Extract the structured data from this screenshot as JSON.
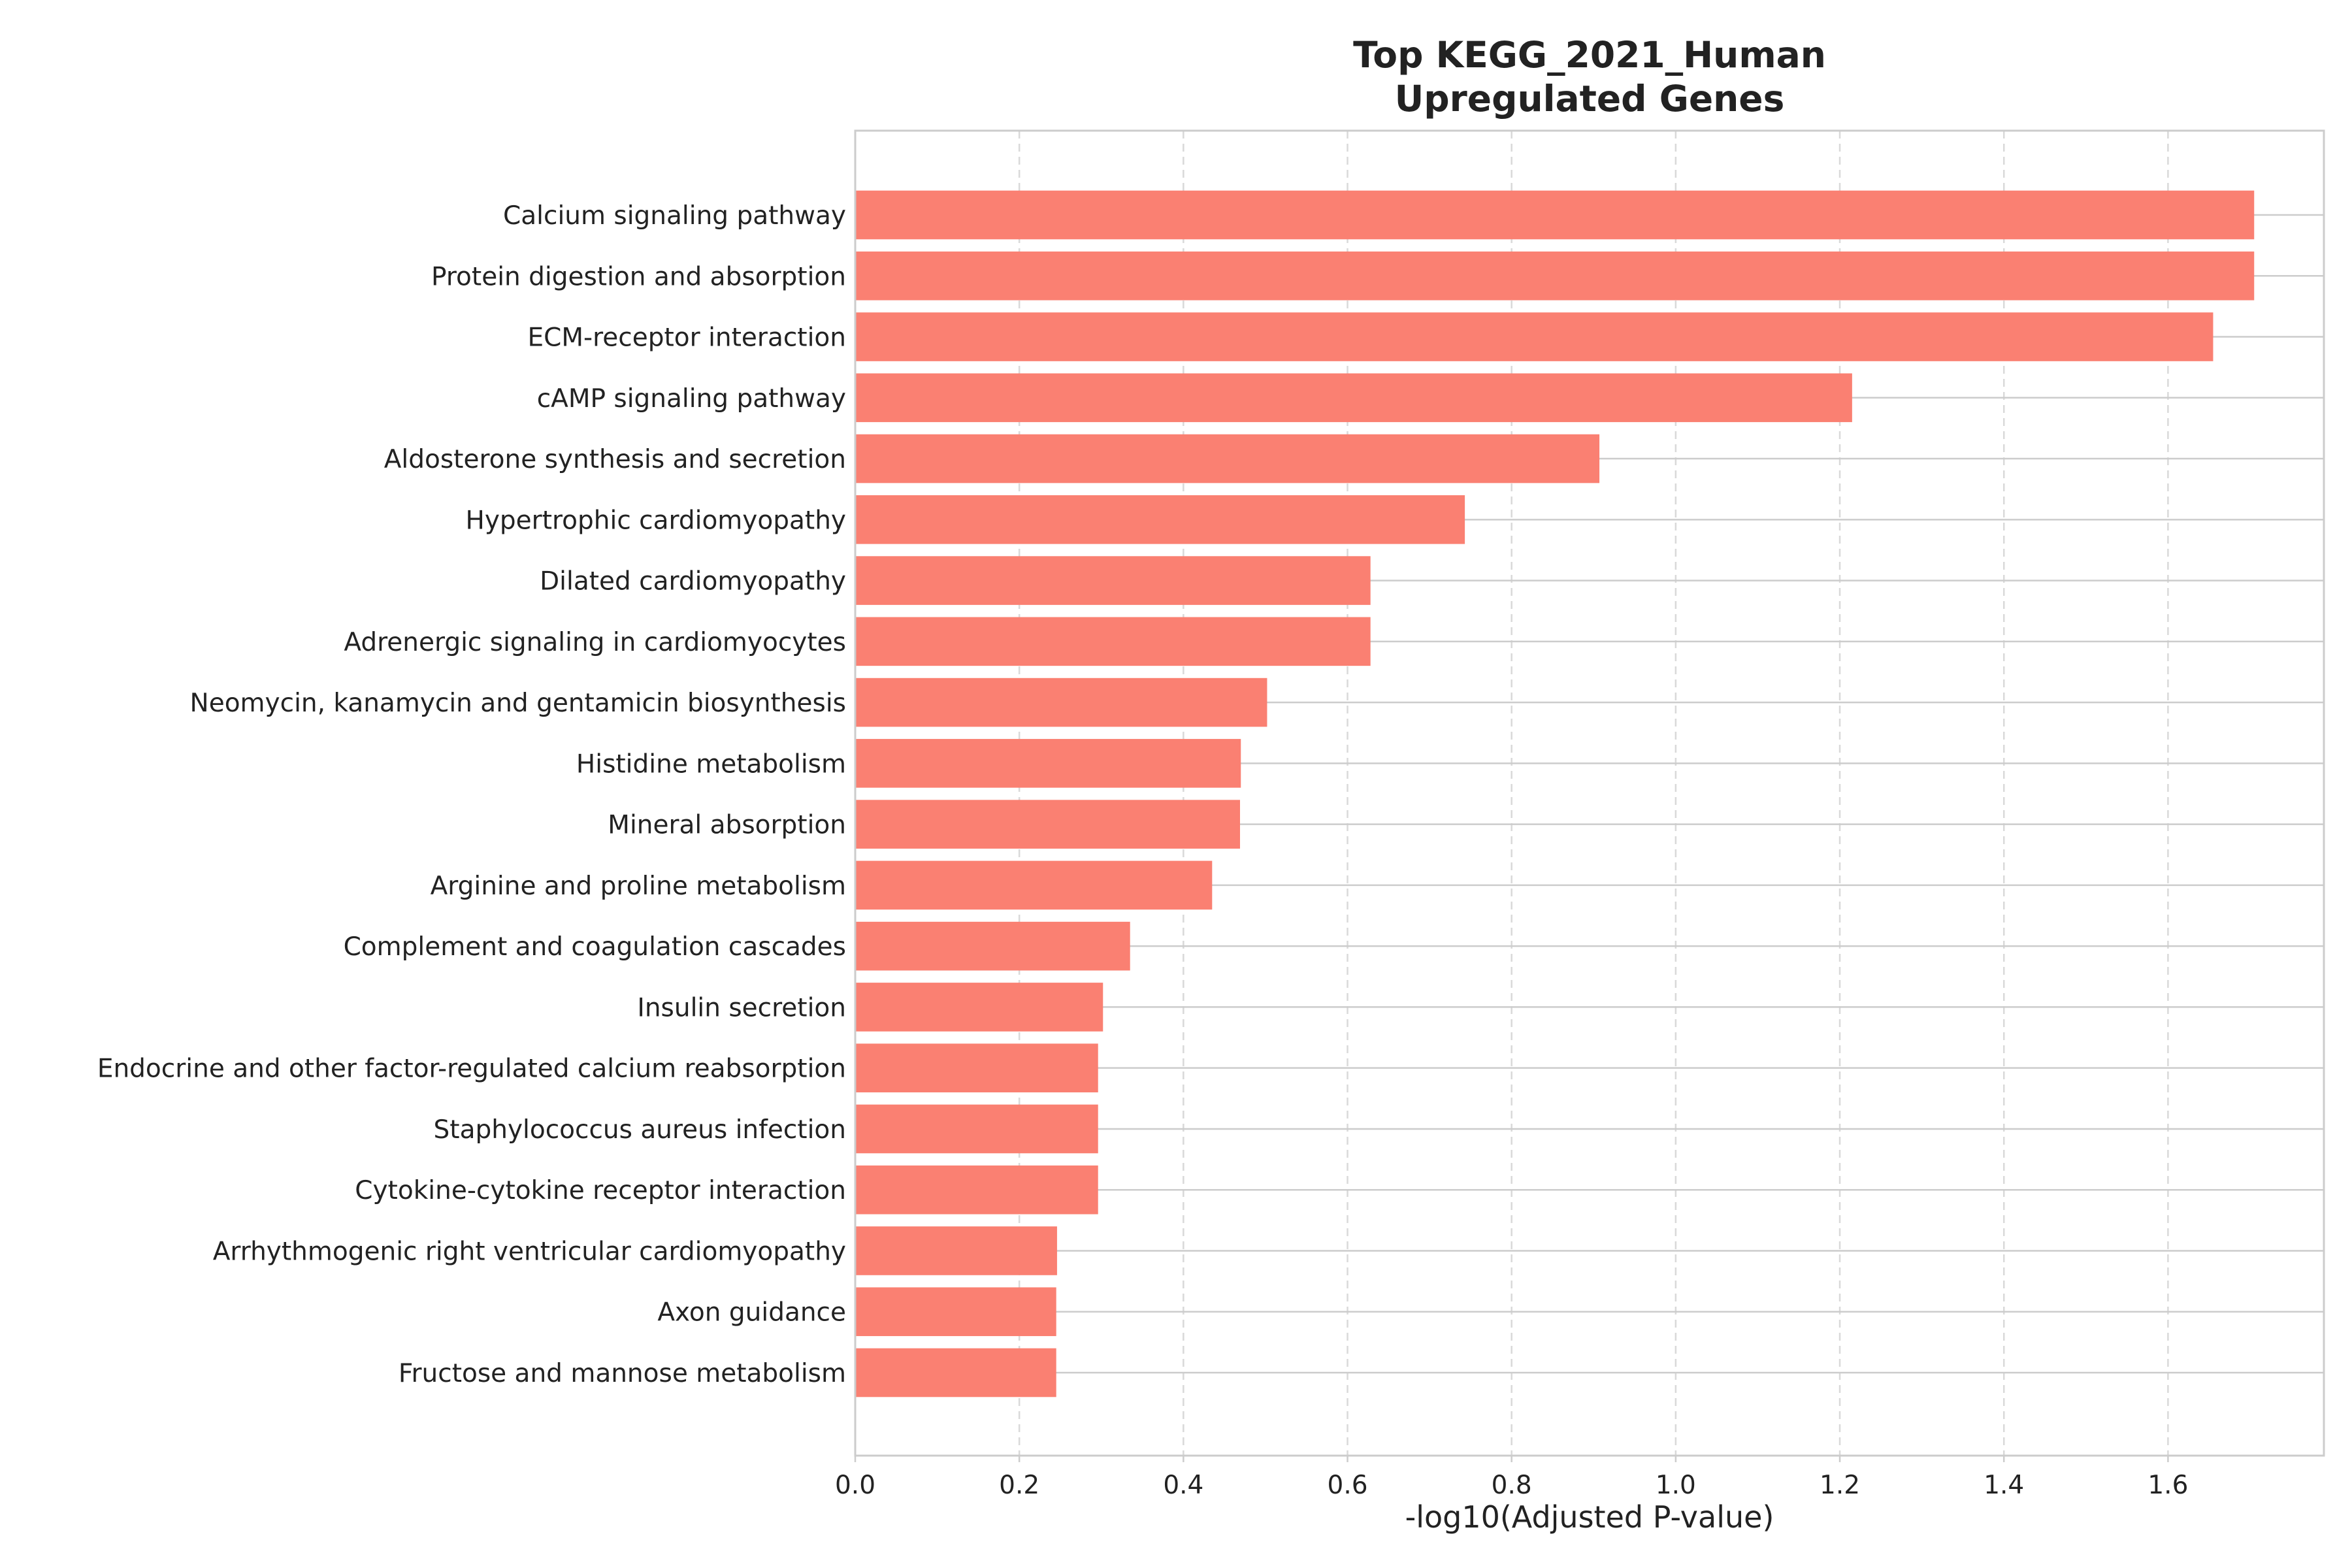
{
  "chart_data": {
    "type": "bar",
    "orientation": "horizontal",
    "title_lines": [
      "Top KEGG_2021_Human",
      "Upregulated Genes"
    ],
    "xlabel": "-log10(Adjusted P-value)",
    "ylabel": "",
    "xlim": [
      0,
      1.79
    ],
    "xticks": [
      "0.0",
      "0.2",
      "0.4",
      "0.6",
      "0.8",
      "1.0",
      "1.2",
      "1.4",
      "1.6"
    ],
    "grid": true,
    "bar_color": "#FA8072",
    "categories": [
      "Calcium signaling pathway",
      "Protein digestion and absorption",
      "ECM-receptor interaction",
      "cAMP signaling pathway",
      "Aldosterone synthesis and secretion",
      "Hypertrophic cardiomyopathy",
      "Dilated cardiomyopathy",
      "Adrenergic signaling in cardiomyocytes",
      "Neomycin, kanamycin and gentamicin biosynthesis",
      "Histidine metabolism",
      "Mineral absorption",
      "Arginine and proline metabolism",
      "Complement and coagulation cascades",
      "Insulin secretion",
      "Endocrine and other factor-regulated calcium reabsorption",
      "Staphylococcus aureus infection",
      "Cytokine-cytokine receptor interaction",
      "Arrhythmogenic right ventricular cardiomyopathy",
      "Axon guidance",
      "Fructose and mannose metabolism"
    ],
    "values": [
      1.705,
      1.705,
      1.655,
      1.215,
      0.907,
      0.743,
      0.628,
      0.628,
      0.502,
      0.47,
      0.469,
      0.435,
      0.335,
      0.302,
      0.296,
      0.296,
      0.296,
      0.246,
      0.245,
      0.245
    ]
  }
}
